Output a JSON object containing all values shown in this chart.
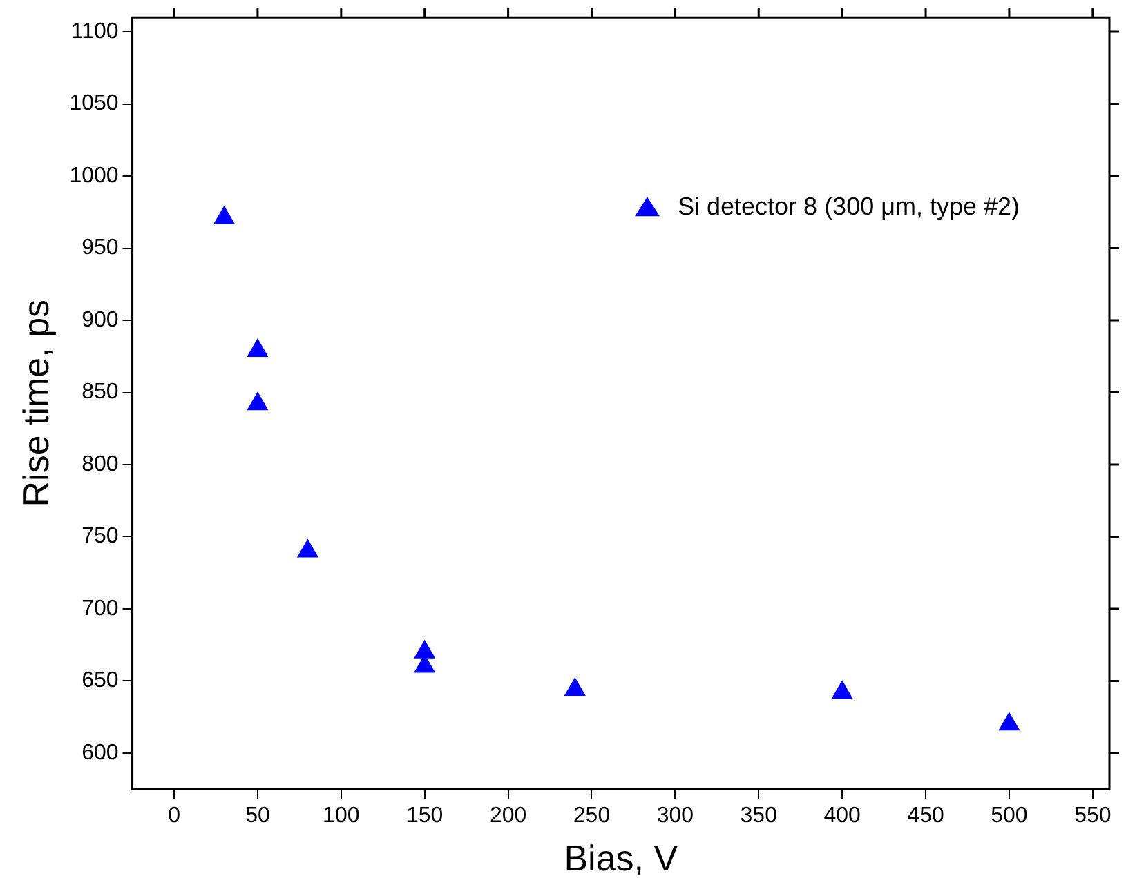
{
  "chart_data": {
    "type": "scatter",
    "xlabel": "Bias, V",
    "ylabel": "Rise time, ps",
    "series": [
      {
        "name": "Si detector 8 (300 μm, type #2)",
        "color": "#0000ff",
        "x": [
          30,
          50,
          50,
          80,
          150,
          150,
          240,
          400,
          500
        ],
        "values": [
          971,
          879,
          842,
          740,
          670,
          660,
          644,
          642,
          620
        ]
      }
    ],
    "xlim": [
      -25,
      560
    ],
    "xticks": [
      0,
      50,
      100,
      150,
      200,
      250,
      300,
      350,
      400,
      450,
      500,
      550
    ],
    "ylim": [
      575,
      1110
    ],
    "yticks": [
      600,
      650,
      700,
      750,
      800,
      850,
      900,
      950,
      1000,
      1050,
      1100
    ],
    "grid": false,
    "legend": "top right",
    "marker": "triangle"
  }
}
